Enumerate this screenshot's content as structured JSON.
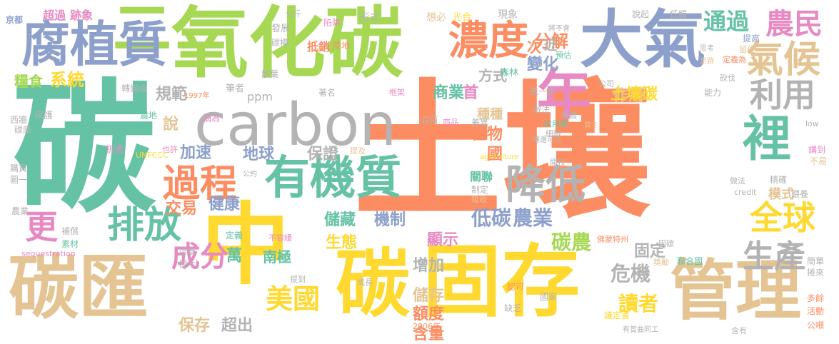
{
  "colors": {
    "orange": "#fc8d62",
    "green": "#66c2a5",
    "blue": "#8da0cb",
    "lime": "#a6d854",
    "yellow": "#ffd92f",
    "tan": "#e5c494",
    "gray": "#b3b3b3",
    "pink": "#e78ac3"
  },
  "words": [
    {
      "text": "土壤",
      "color": "orange"
    },
    {
      "text": "碳",
      "color": "green"
    },
    {
      "text": "二",
      "color": "lime"
    },
    {
      "text": "氧化碳",
      "color": "lime"
    },
    {
      "text": "中",
      "color": "yellow"
    },
    {
      "text": "固存",
      "color": "yellow"
    },
    {
      "text": "碳匯",
      "color": "tan"
    },
    {
      "text": "carbon",
      "color": "gray"
    },
    {
      "text": "大氣",
      "color": "blue"
    },
    {
      "text": "腐植質",
      "color": "blue"
    },
    {
      "text": "有機質",
      "color": "green"
    },
    {
      "text": "碳",
      "color": "yellow"
    },
    {
      "text": "管理",
      "color": "tan"
    },
    {
      "text": "年",
      "color": "pink"
    },
    {
      "text": "濃度",
      "color": "orange"
    },
    {
      "text": "氣候",
      "color": "tan"
    },
    {
      "text": "農民",
      "color": "pink"
    },
    {
      "text": "利用",
      "color": "gray"
    },
    {
      "text": "裡",
      "color": "green"
    },
    {
      "text": "全球",
      "color": "yellow"
    },
    {
      "text": "過程",
      "color": "orange"
    },
    {
      "text": "排放",
      "color": "green"
    },
    {
      "text": "降低",
      "color": "gray"
    },
    {
      "text": "成分",
      "color": "pink"
    },
    {
      "text": "美國",
      "color": "yellow"
    },
    {
      "text": "生產",
      "color": "gray"
    },
    {
      "text": "更",
      "color": "pink"
    },
    {
      "text": "糧食",
      "color": "lime"
    },
    {
      "text": "系統",
      "color": "yellow"
    },
    {
      "text": "分解",
      "color": "orange"
    },
    {
      "text": "作用",
      "color": "tan"
    },
    {
      "text": "通過",
      "color": "green"
    },
    {
      "text": "變化",
      "color": "blue"
    },
    {
      "text": "方式",
      "color": "gray"
    },
    {
      "text": "規範",
      "color": "gray"
    },
    {
      "text": "商業",
      "color": "green"
    },
    {
      "text": "種種",
      "color": "tan"
    },
    {
      "text": "土壤碳",
      "color": "yellow"
    },
    {
      "text": "植物",
      "color": "orange"
    },
    {
      "text": "地球",
      "color": "blue"
    },
    {
      "text": "保證",
      "color": "gray"
    },
    {
      "text": "加速",
      "color": "blue"
    },
    {
      "text": "說",
      "color": "tan"
    },
    {
      "text": "交易",
      "color": "orange"
    },
    {
      "text": "健康",
      "color": "blue"
    },
    {
      "text": "儲藏",
      "color": "green"
    },
    {
      "text": "機制",
      "color": "blue"
    },
    {
      "text": "低碳",
      "color": "blue"
    },
    {
      "text": "農業",
      "color": "blue"
    },
    {
      "text": "生態",
      "color": "yellow"
    },
    {
      "text": "顯示",
      "color": "pink"
    },
    {
      "text": "增加",
      "color": "gray"
    },
    {
      "text": "儲存",
      "color": "tan"
    },
    {
      "text": "額度",
      "color": "orange"
    },
    {
      "text": "碳農",
      "color": "lime"
    },
    {
      "text": "危機",
      "color": "gray"
    },
    {
      "text": "固定",
      "color": "gray"
    },
    {
      "text": "讀者",
      "color": "yellow"
    },
    {
      "text": "含量",
      "color": "orange"
    },
    {
      "text": "超出",
      "color": "gray"
    },
    {
      "text": "保存",
      "color": "tan"
    },
    {
      "text": "南極",
      "color": "green"
    },
    {
      "text": "萬",
      "color": "green"
    },
    {
      "text": "模式",
      "color": "tan"
    },
    {
      "text": "次",
      "color": "orange"
    },
    {
      "text": "近",
      "color": "gray"
    },
    {
      "text": "首",
      "color": "pink"
    },
    {
      "text": "國",
      "color": "orange"
    },
    {
      "text": "ppm",
      "color": "gray"
    },
    {
      "text": "關聯",
      "color": "green"
    },
    {
      "text": "超過",
      "color": "pink"
    },
    {
      "text": "跡象",
      "color": "pink"
    },
    {
      "text": "京都",
      "color": "blue"
    },
    {
      "text": "公斤",
      "color": "gray"
    },
    {
      "text": "形式",
      "color": "gray"
    },
    {
      "text": "想必",
      "color": "tan"
    },
    {
      "text": "光合",
      "color": "yellow"
    },
    {
      "text": "現象",
      "color": "gray"
    },
    {
      "text": "說起",
      "color": "gray"
    },
    {
      "text": "低觸",
      "color": "gray"
    },
    {
      "text": "發展",
      "color": "gray"
    },
    {
      "text": "陷阱",
      "color": "pink"
    },
    {
      "text": "將不會",
      "color": "gray"
    },
    {
      "text": "提高",
      "color": "blue"
    },
    {
      "text": "抵銷",
      "color": "orange"
    },
    {
      "text": "碳權",
      "color": "gray"
    },
    {
      "text": "陸地",
      "color": "orange"
    },
    {
      "text": "預估",
      "color": "green"
    },
    {
      "text": "思考",
      "color": "gray"
    },
    {
      "text": "留住",
      "color": "tan"
    },
    {
      "text": "定義為",
      "color": "orange"
    },
    {
      "text": "散葉",
      "color": "gray"
    },
    {
      "text": "森林",
      "color": "green"
    },
    {
      "text": "足跡",
      "color": "tan"
    },
    {
      "text": "筆者",
      "color": "gray"
    },
    {
      "text": "公司",
      "color": "gray"
    },
    {
      "text": "轉變成",
      "color": "gray"
    },
    {
      "text": "1997年",
      "color": "orange"
    },
    {
      "text": "著名",
      "color": "gray"
    },
    {
      "text": "框架",
      "color": "pink"
    },
    {
      "text": "進一步",
      "color": "gray"
    },
    {
      "text": "能力",
      "color": "gray"
    },
    {
      "text": "砍伐",
      "color": "gray"
    },
    {
      "text": "保護",
      "color": "gray"
    },
    {
      "text": "差異",
      "color": "gray"
    },
    {
      "text": "辦法",
      "color": "gray"
    },
    {
      "text": "東牆",
      "color": "gray"
    },
    {
      "text": "信用額",
      "color": "green"
    },
    {
      "text": "稱為",
      "color": "pink"
    },
    {
      "text": "農地",
      "color": "green"
    },
    {
      "text": "碳庫",
      "color": "gray"
    },
    {
      "text": "細微",
      "color": "gray"
    },
    {
      "text": "商品",
      "color": "pink"
    },
    {
      "text": "百百",
      "color": "gray"
    },
    {
      "text": "補還可以",
      "color": "gray"
    },
    {
      "text": "買主",
      "color": "tan"
    },
    {
      "text": "西牆",
      "color": "gray"
    },
    {
      "text": "low",
      "color": "gray"
    },
    {
      "text": "折衷",
      "color": "pink"
    },
    {
      "text": "也許",
      "color": "pink"
    },
    {
      "text": "UNFCCC",
      "color": "yellow"
    },
    {
      "text": "提及",
      "color": "tan"
    },
    {
      "text": "agriculture",
      "color": "yellow"
    },
    {
      "text": "開枝",
      "color": "gray"
    },
    {
      "text": "講到",
      "color": "pink"
    },
    {
      "text": "不易",
      "color": "tan"
    },
    {
      "text": "公約",
      "color": "gray"
    },
    {
      "text": "人口",
      "color": "orange"
    },
    {
      "text": "精確",
      "color": "gray"
    },
    {
      "text": "購買",
      "color": "gray"
    },
    {
      "text": "圖一",
      "color": "gray"
    },
    {
      "text": "制定",
      "color": "gray"
    },
    {
      "text": "吸收",
      "color": "tan"
    },
    {
      "text": "做法",
      "color": "gray"
    },
    {
      "text": "credit",
      "color": "gray"
    },
    {
      "text": "餵養",
      "color": "gray"
    },
    {
      "text": "農業",
      "color": "gray"
    },
    {
      "text": "補償",
      "color": "gray"
    },
    {
      "text": "素材",
      "color": "green"
    },
    {
      "text": "定義",
      "color": "green"
    },
    {
      "text": "不容緩",
      "color": "pink"
    },
    {
      "text": "sequestration",
      "color": "pink"
    },
    {
      "text": "培養",
      "color": "gray"
    },
    {
      "text": "樹木",
      "color": "gray"
    },
    {
      "text": "提到",
      "color": "gray"
    },
    {
      "text": "佛蒙特州",
      "color": "orange"
    },
    {
      "text": "固碳",
      "color": "gray"
    },
    {
      "text": "獎勵",
      "color": "tan"
    },
    {
      "text": "聯合國",
      "color": "green"
    },
    {
      "text": "簡單",
      "color": "gray"
    },
    {
      "text": "捲來",
      "color": "gray"
    },
    {
      "text": "成長",
      "color": "gray"
    },
    {
      "text": "認可",
      "color": "orange"
    },
    {
      "text": "國家",
      "color": "gray"
    },
    {
      "text": "缺乏",
      "color": "gray"
    },
    {
      "text": "議定書",
      "color": "yellow"
    },
    {
      "text": "多餘",
      "color": "orange"
    },
    {
      "text": "活動",
      "color": "orange"
    },
    {
      "text": "2006年",
      "color": "orange"
    },
    {
      "text": "有賞曲同工",
      "color": "gray"
    },
    {
      "text": "含有",
      "color": "gray"
    },
    {
      "text": "公噸",
      "color": "orange"
    }
  ]
}
